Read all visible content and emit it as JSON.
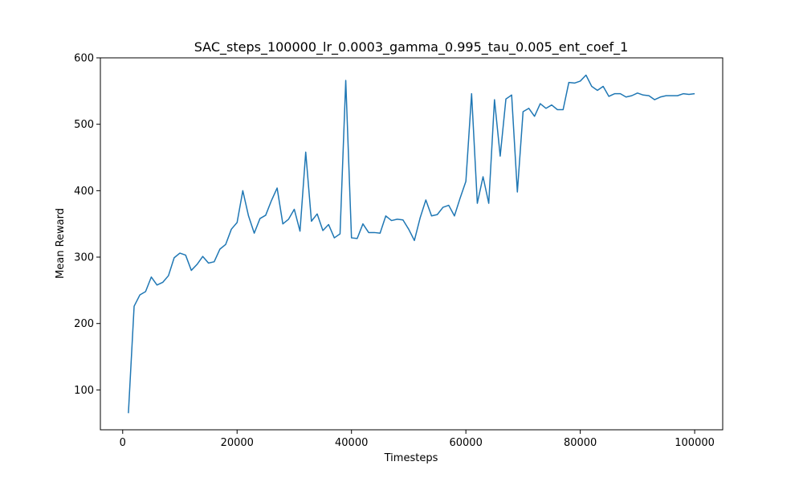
{
  "chart_data": {
    "type": "line",
    "title": "SAC_steps_100000_lr_0.0003_gamma_0.995_tau_0.005_ent_coef_1",
    "xlabel": "Timesteps",
    "ylabel": "Mean Reward",
    "xlim": [
      -3900,
      104900
    ],
    "ylim": [
      40,
      600
    ],
    "xticks": [
      0,
      20000,
      40000,
      60000,
      80000,
      100000
    ],
    "yticks": [
      100,
      200,
      300,
      400,
      500,
      600
    ],
    "grid": false,
    "line_color": "#1f77b4",
    "series": [
      {
        "x": [
          1000,
          2000,
          3000,
          4000,
          5000,
          6000,
          7000,
          8000,
          9000,
          10000,
          11000,
          12000,
          13000,
          14000,
          15000,
          16000,
          17000,
          18000,
          19000,
          20000,
          21000,
          22000,
          23000,
          24000,
          25000,
          26000,
          27000,
          28000,
          29000,
          30000,
          31000,
          32000,
          33000,
          34000,
          35000,
          36000,
          37000,
          38000,
          39000,
          40000,
          41000,
          42000,
          43000,
          44000,
          45000,
          46000,
          47000,
          48000,
          49000,
          50000,
          51000,
          52000,
          53000,
          54000,
          55000,
          56000,
          57000,
          58000,
          59000,
          60000,
          61000,
          62000,
          63000,
          64000,
          65000,
          66000,
          67000,
          68000,
          69000,
          70000,
          71000,
          72000,
          73000,
          74000,
          75000,
          76000,
          77000,
          78000,
          79000,
          80000,
          81000,
          82000,
          83000,
          84000,
          85000,
          86000,
          87000,
          88000,
          89000,
          90000,
          91000,
          92000,
          93000,
          94000,
          95000,
          96000,
          97000,
          98000,
          99000,
          100000
        ],
        "values": [
          65,
          226,
          243,
          248,
          270,
          258,
          262,
          272,
          299,
          306,
          303,
          280,
          289,
          301,
          291,
          293,
          312,
          319,
          342,
          352,
          400,
          362,
          336,
          358,
          363,
          385,
          404,
          350,
          357,
          372,
          339,
          458,
          354,
          365,
          340,
          349,
          329,
          335,
          566,
          329,
          328,
          350,
          337,
          337,
          336,
          362,
          355,
          357,
          356,
          342,
          325,
          359,
          386,
          362,
          364,
          375,
          378,
          362,
          389,
          414,
          546,
          381,
          421,
          381,
          537,
          452,
          538,
          544,
          398,
          519,
          524,
          512,
          531,
          524,
          529,
          522,
          522,
          563,
          562,
          565,
          574,
          557,
          551,
          557,
          542,
          546,
          546,
          541,
          543,
          547,
          544,
          543,
          537,
          541,
          543,
          543,
          543,
          546,
          545,
          546
        ]
      }
    ]
  }
}
